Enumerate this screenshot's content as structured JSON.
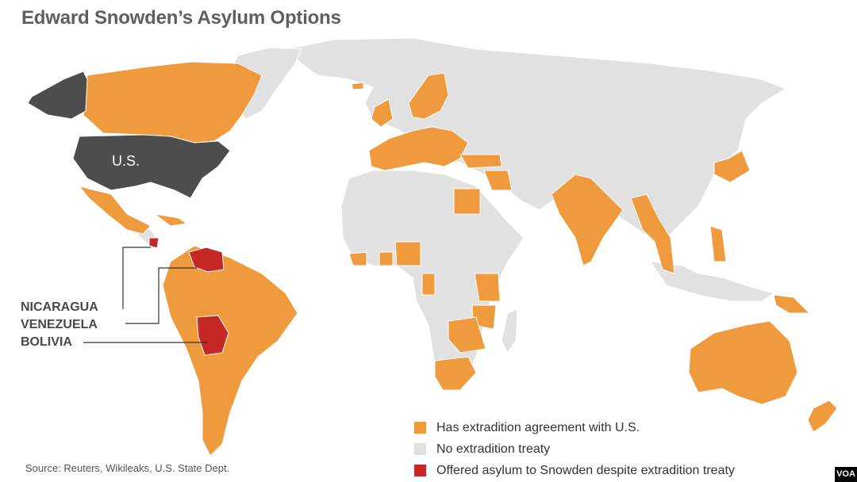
{
  "title": "Edward Snowden’s Asylum Options",
  "us_label": "U.S.",
  "callouts": [
    "NICARAGUA",
    "VENEZUELA",
    "BOLIVIA"
  ],
  "legend": [
    {
      "label": "Has extradition agreement with U.S.",
      "color": "#ef9a3c"
    },
    {
      "label": "No extradition treaty",
      "color": "#e1e1e1"
    },
    {
      "label": "Offered asylum to Snowden despite extradition treaty",
      "color": "#c62828"
    }
  ],
  "source": "Source: Reuters, Wikileaks, U.S. State Dept.",
  "badge": "VOA",
  "colors": {
    "agreement": "#ef9a3c",
    "no_treaty": "#e1e1e1",
    "asylum": "#c62828",
    "us": "#4d4d4d"
  }
}
